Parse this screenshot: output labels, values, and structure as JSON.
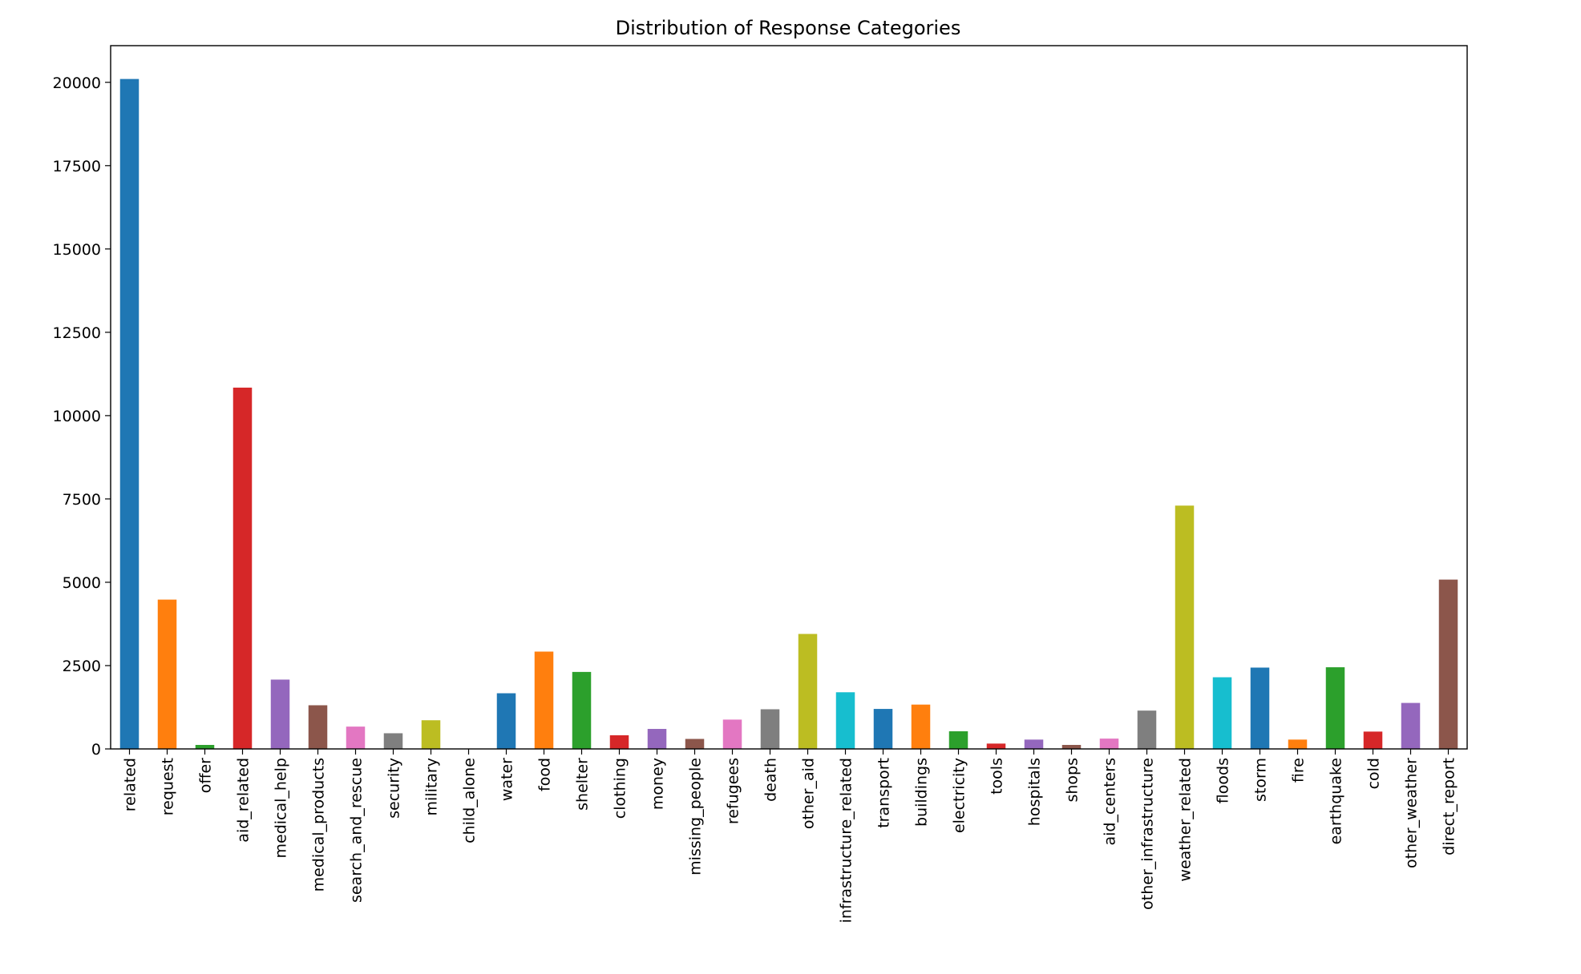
{
  "chart_data": {
    "type": "bar",
    "title": "Distribution of Response Categories",
    "xlabel": "",
    "ylabel": "",
    "ylim": [
      0,
      21100
    ],
    "yticks": [
      0,
      2500,
      5000,
      7500,
      10000,
      12500,
      15000,
      17500,
      20000
    ],
    "grid": false,
    "legend": "none",
    "categories": [
      "related",
      "request",
      "offer",
      "aid_related",
      "medical_help",
      "medical_products",
      "search_and_rescue",
      "security",
      "military",
      "child_alone",
      "water",
      "food",
      "shelter",
      "clothing",
      "money",
      "missing_people",
      "refugees",
      "death",
      "other_aid",
      "infrastructure_related",
      "transport",
      "buildings",
      "electricity",
      "tools",
      "hospitals",
      "shops",
      "aid_centers",
      "other_infrastructure",
      "weather_related",
      "floods",
      "storm",
      "fire",
      "earthquake",
      "cold",
      "other_weather",
      "direct_report"
    ],
    "values": [
      20100,
      4480,
      120,
      10840,
      2080,
      1310,
      670,
      470,
      860,
      0,
      1670,
      2920,
      2310,
      410,
      600,
      300,
      880,
      1190,
      3450,
      1700,
      1200,
      1330,
      530,
      160,
      280,
      120,
      310,
      1150,
      7300,
      2150,
      2440,
      280,
      2450,
      520,
      1380,
      5080
    ],
    "colors": [
      "#1f77b4",
      "#ff7f0e",
      "#2ca02c",
      "#d62728",
      "#9467bd",
      "#8c564b",
      "#e377c2",
      "#7f7f7f",
      "#bcbd22",
      "#17becf"
    ]
  }
}
